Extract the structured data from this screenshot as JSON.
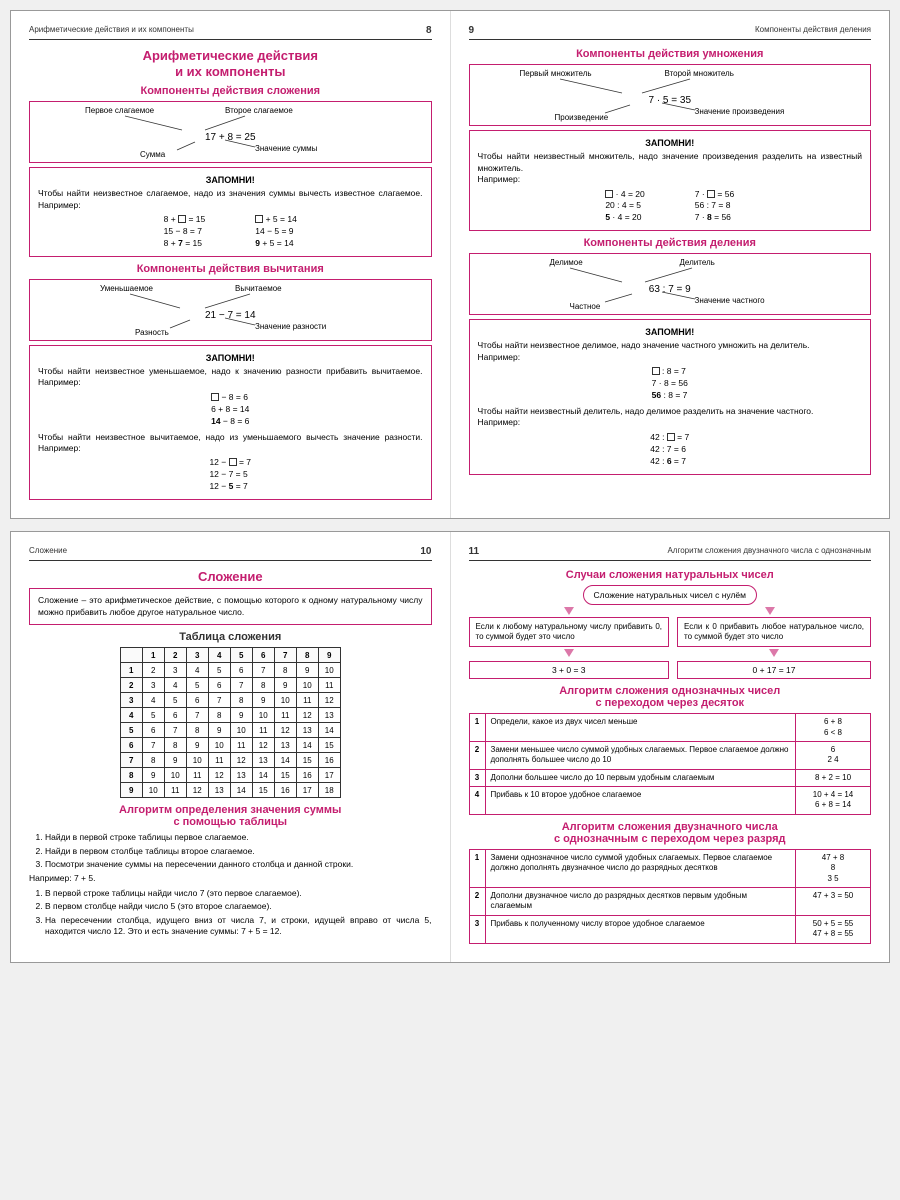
{
  "colors": {
    "brand": "#c41e6f",
    "text": "#222",
    "border": "#333",
    "bg": "#ffffff"
  },
  "spread1": {
    "p8": {
      "run": "Арифметические действия и их компоненты",
      "num": "8",
      "title1": "Арифметические действия",
      "title2": "и их компоненты",
      "sub_add": "Компоненты действия сложения",
      "add": {
        "l1": "Первое слагаемое",
        "l2": "Второе слагаемое",
        "eq": "17 + 8 = 25",
        "l3": "Сумма",
        "l4": "Значение суммы"
      },
      "rem_add_t": "ЗАПОМНИ!",
      "rem_add": "Чтобы найти неизвестное слагаемое, надо из значения суммы вычесть известное слагаемое. Например:",
      "add_ex_l": [
        "8 + □ = 15",
        "15 − 8 = 7",
        "8 + <b>7</b> = 15"
      ],
      "add_ex_r": [
        "□ + 5 = 14",
        "14 − 5 = 9",
        "<b>9</b> + 5 = 14"
      ],
      "sub_sub": "Компоненты действия вычитания",
      "sub": {
        "l1": "Уменьшаемое",
        "l2": "Вычитаемое",
        "eq": "21 − 7 = 14",
        "l3": "Разность",
        "l4": "Значение разности"
      },
      "rem_sub_t": "ЗАПОМНИ!",
      "rem_sub1": "Чтобы найти неизвестное уменьшаемое, надо к значению разности прибавить вычитаемое. Например:",
      "sub_ex1": [
        "□ − 8 = 6",
        "6 + 8 = 14",
        "<b>14</b> − 8 = 6"
      ],
      "rem_sub2": "Чтобы найти неизвестное вычитаемое, надо из уменьшаемого вычесть значение разности. Например:",
      "sub_ex2": [
        "12 − □ = 7",
        "12 − 7 = 5",
        "12 − <b>5</b> = 7"
      ]
    },
    "p9": {
      "num": "9",
      "run": "Компоненты действия деления",
      "sub_mul": "Компоненты действия умножения",
      "mul": {
        "l1": "Первый множитель",
        "l2": "Второй множитель",
        "eq": "7 · 5 = 35",
        "l3": "Произведение",
        "l4": "Значение произведения"
      },
      "rem_mul_t": "ЗАПОМНИ!",
      "rem_mul": "Чтобы найти неизвестный множитель, надо значение произведения разделить на известный множитель.",
      "napr": "Например:",
      "mul_ex_l": [
        "□ · 4 = 20",
        "20 : 4 = 5",
        "<b>5</b> · 4 = 20"
      ],
      "mul_ex_r": [
        "7 · □ = 56",
        "56 : 7 = 8",
        "7 · <b>8</b> = 56"
      ],
      "sub_div": "Компоненты действия деления",
      "div": {
        "l1": "Делимое",
        "l2": "Делитель",
        "eq": "63 : 7 = 9",
        "l3": "Частное",
        "l4": "Значение частного"
      },
      "rem_div_t": "ЗАПОМНИ!",
      "rem_div1": "Чтобы найти неизвестное делимое, надо значение частного умножить на делитель.",
      "div_ex1": [
        "□ : 8 = 7",
        "7 · 8 = 56",
        "<b>56</b> : 8 = 7"
      ],
      "rem_div2": "Чтобы найти неизвестный делитель, надо делимое разделить на значение частного.",
      "div_ex2": [
        "42 : □ = 7",
        "42 : 7 = 6",
        "42 : <b>6</b> = 7"
      ]
    }
  },
  "spread2": {
    "p10": {
      "run": "Сложение",
      "num": "10",
      "title": "Сложение",
      "def": "Сложение – это арифметическое действие, с помощью которого к одному натуральному числу можно прибавить любое другое натуральное число.",
      "tab_t": "Таблица сложения",
      "headers": [
        "1",
        "2",
        "3",
        "4",
        "5",
        "6",
        "7",
        "8",
        "9"
      ],
      "rows": [
        [
          "1",
          "2",
          "3",
          "4",
          "5",
          "6",
          "7",
          "8",
          "9",
          "10"
        ],
        [
          "2",
          "3",
          "4",
          "5",
          "6",
          "7",
          "8",
          "9",
          "10",
          "11"
        ],
        [
          "3",
          "4",
          "5",
          "6",
          "7",
          "8",
          "9",
          "10",
          "11",
          "12"
        ],
        [
          "4",
          "5",
          "6",
          "7",
          "8",
          "9",
          "10",
          "11",
          "12",
          "13"
        ],
        [
          "5",
          "6",
          "7",
          "8",
          "9",
          "10",
          "11",
          "12",
          "13",
          "14"
        ],
        [
          "6",
          "7",
          "8",
          "9",
          "10",
          "11",
          "12",
          "13",
          "14",
          "15"
        ],
        [
          "7",
          "8",
          "9",
          "10",
          "11",
          "12",
          "13",
          "14",
          "15",
          "16"
        ],
        [
          "8",
          "9",
          "10",
          "11",
          "12",
          "13",
          "14",
          "15",
          "16",
          "17"
        ],
        [
          "9",
          "10",
          "11",
          "12",
          "13",
          "14",
          "15",
          "16",
          "17",
          "18"
        ]
      ],
      "algo_t1": "Алгоритм определения значения суммы",
      "algo_t2": "с помощью таблицы",
      "steps": [
        "Найди в первой строке таблицы первое слагаемое.",
        "Найди в первом столбце таблицы второе слагаемое.",
        "Посмотри значение суммы на пересечении данного столбца и данной строки."
      ],
      "ex_h": "Например: 7 + 5.",
      "ex_steps": [
        "В первой строке таблицы найди число 7 (это первое слагаемое).",
        "В первом столбце найди число 5 (это второе слагаемое).",
        "На пересечении столбца, идущего вниз от числа 7, и строки, идущей вправо от числа 5, находится число 12. Это и есть значение суммы: 7 + 5 = 12."
      ]
    },
    "p11": {
      "num": "11",
      "run": "Алгоритм сложения двузначного числа с однозначным",
      "sub1": "Случаи сложения натуральных чисел",
      "flow_top": "Сложение натуральных чисел с нулём",
      "flow_l": "Если к любому натуральному числу прибавить 0, то суммой будет это число",
      "flow_r": "Если к 0 прибавить любое натуральное число, то суммой будет это число",
      "flow_lex": "3 + 0 = 3",
      "flow_rex": "0 + 17 = 17",
      "sub2a": "Алгоритм сложения однозначных чисел",
      "sub2b": "с переходом через десяток",
      "algo1": [
        {
          "n": "1",
          "t": "Определи, какое из двух чисел меньше",
          "r": "6 + 8\n6 < 8"
        },
        {
          "n": "2",
          "t": "Замени меньшее число суммой удобных слагаемых. Первое слагаемое должно дополнять большее число до 10",
          "r": "6\n2   4"
        },
        {
          "n": "3",
          "t": "Дополни большее число до 10 первым удобным слагаемым",
          "r": "8 + 2 = 10"
        },
        {
          "n": "4",
          "t": "Прибавь к 10 второе удобное слагаемое",
          "r": "10 + 4 = 14\n6 + 8 = 14"
        }
      ],
      "sub3a": "Алгоритм сложения двузначного числа",
      "sub3b": "с однозначным с переходом через разряд",
      "algo2": [
        {
          "n": "1",
          "t": "Замени однозначное число суммой удобных слагаемых. Первое слагаемое должно дополнять двузначное число до разрядных десятков",
          "r": "47 + 8\n8\n3   5"
        },
        {
          "n": "2",
          "t": "Дополни двузначное число до разрядных десятков первым удобным слагаемым",
          "r": "47 + 3 = 50"
        },
        {
          "n": "3",
          "t": "Прибавь к полученному числу второе удобное слагаемое",
          "r": "50 + 5 = 55\n47 + 8 = 55"
        }
      ]
    }
  }
}
